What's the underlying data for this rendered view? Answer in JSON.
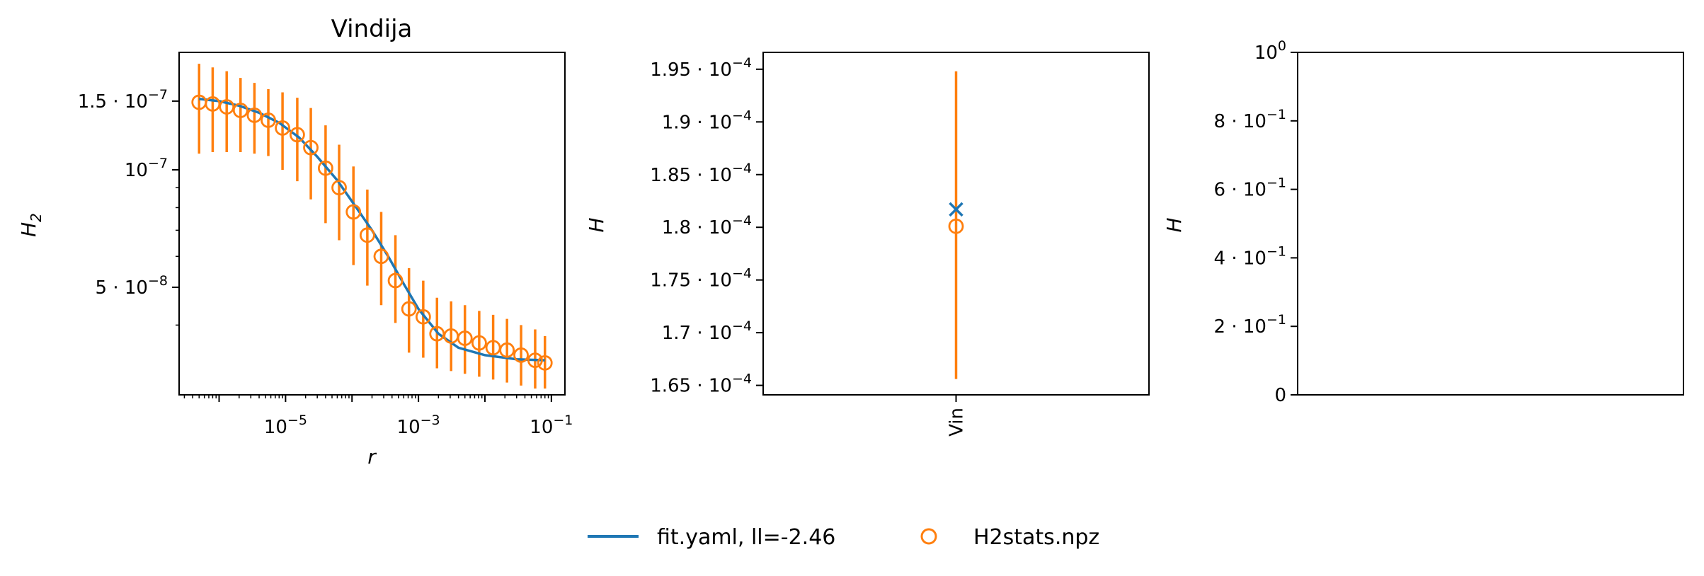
{
  "colors": {
    "fit": "#1f77b4",
    "data": "#ff7f0e"
  },
  "legend": {
    "fit_label": "fit.yaml, ll=-2.46",
    "data_label": "H2stats.npz"
  },
  "chart_data": [
    {
      "type": "line",
      "title": "Vindija",
      "xlabel": "r",
      "ylabel": "H_2",
      "xscale": "log",
      "yscale": "log",
      "xlim": [
        2.5e-07,
        0.16
      ],
      "ylim": [
        2.65e-08,
        2e-07
      ],
      "xticks": [
        1e-05,
        0.001,
        0.1
      ],
      "xticklabels": [
        {
          "b": "10",
          "e": "−5"
        },
        {
          "b": "10",
          "e": "−3"
        },
        {
          "b": "10",
          "e": "−1"
        }
      ],
      "yticks": [
        1.5e-07,
        1e-07,
        5e-08
      ],
      "yticklabels": [
        {
          "m": "1.5 · ",
          "b": "10",
          "e": "−7"
        },
        {
          "m": "",
          "b": "10",
          "e": "−7"
        },
        {
          "m": "5 · ",
          "b": "10",
          "e": "−8"
        }
      ],
      "fit_line": {
        "name": "fit.yaml, ll=-2.46",
        "x": [
          5e-07,
          1e-06,
          2e-06,
          4e-06,
          8e-06,
          1.6e-05,
          3e-05,
          6e-05,
          0.0001,
          0.0002,
          0.00035,
          0.0006,
          0.001,
          0.002,
          0.004,
          0.01,
          0.03,
          0.08
        ],
        "y": [
          1.52e-07,
          1.5e-07,
          1.46e-07,
          1.4e-07,
          1.32e-07,
          1.21e-07,
          1.08e-07,
          9.4e-08,
          8.3e-08,
          7e-08,
          6e-08,
          5.1e-08,
          4.4e-08,
          3.8e-08,
          3.5e-08,
          3.35e-08,
          3.27e-08,
          3.25e-08
        ]
      },
      "points": {
        "name": "H2stats.npz",
        "x": [
          5e-07,
          8e-07,
          1.3e-06,
          2.1e-06,
          3.4e-06,
          5.5e-06,
          9e-06,
          1.5e-05,
          2.4e-05,
          4e-05,
          6.4e-05,
          0.000105,
          0.00017,
          0.000275,
          0.00045,
          0.00072,
          0.00118,
          0.0019,
          0.0031,
          0.005,
          0.0082,
          0.0133,
          0.0215,
          0.035,
          0.057,
          0.08
        ],
        "y": [
          1.49e-07,
          1.475e-07,
          1.45e-07,
          1.42e-07,
          1.38e-07,
          1.34e-07,
          1.28e-07,
          1.23e-07,
          1.14e-07,
          1.01e-07,
          9e-08,
          7.8e-08,
          6.8e-08,
          6e-08,
          5.2e-08,
          4.4e-08,
          4.2e-08,
          3.8e-08,
          3.75e-08,
          3.7e-08,
          3.6e-08,
          3.5e-08,
          3.45e-08,
          3.35e-08,
          3.25e-08,
          3.2e-08
        ],
        "ylow": [
          1.1e-07,
          1.11e-07,
          1.11e-07,
          1.11e-07,
          1.1e-07,
          1.085e-07,
          1e-07,
          9.35e-08,
          8.4e-08,
          7.3e-08,
          6.6e-08,
          5.7e-08,
          5.05e-08,
          4.5e-08,
          4.05e-08,
          3.4e-08,
          3.3e-08,
          3.1e-08,
          3.05e-08,
          3e-08,
          2.95e-08,
          2.9e-08,
          2.85e-08,
          2.8e-08,
          2.75e-08,
          2.75e-08
        ],
        "yhigh": [
          1.87e-07,
          1.83e-07,
          1.79e-07,
          1.72e-07,
          1.67e-07,
          1.61e-07,
          1.58e-07,
          1.53e-07,
          1.44e-07,
          1.3e-07,
          1.16e-07,
          1.02e-07,
          8.9e-08,
          7.8e-08,
          6.8e-08,
          5.6e-08,
          5.2e-08,
          4.7e-08,
          4.6e-08,
          4.5e-08,
          4.35e-08,
          4.25e-08,
          4.15e-08,
          4e-08,
          3.9e-08,
          3.75e-08
        ]
      }
    },
    {
      "type": "scatter",
      "title": "",
      "xlabel": "",
      "ylabel": "H",
      "categories": [
        "Vin"
      ],
      "ylim": [
        0.0001641,
        0.0001966
      ],
      "yticks": [
        0.000165,
        0.00017,
        0.000175,
        0.00018,
        0.000185,
        0.00019,
        0.000195
      ],
      "yticklabels": [
        {
          "m": "1.65 · ",
          "b": "10",
          "e": "−4"
        },
        {
          "m": "1.7 · ",
          "b": "10",
          "e": "−4"
        },
        {
          "m": "1.75 · ",
          "b": "10",
          "e": "−4"
        },
        {
          "m": "1.8 · ",
          "b": "10",
          "e": "−4"
        },
        {
          "m": "1.85 · ",
          "b": "10",
          "e": "−4"
        },
        {
          "m": "1.9 · ",
          "b": "10",
          "e": "−4"
        },
        {
          "m": "1.95 · ",
          "b": "10",
          "e": "−4"
        }
      ],
      "fit_value": 0.0001817,
      "data_value": 0.0001801,
      "data_err": [
        0.0001656,
        0.0001948
      ]
    },
    {
      "type": "scatter",
      "title": "",
      "xlabel": "",
      "ylabel": "H",
      "ylim": [
        0,
        1
      ],
      "yticks": [
        0,
        0.2,
        0.4,
        0.6,
        0.8,
        1.0
      ],
      "yticklabels": [
        {
          "m": "0",
          "b": "",
          "e": ""
        },
        {
          "m": "2 · ",
          "b": "10",
          "e": "−1"
        },
        {
          "m": "4 · ",
          "b": "10",
          "e": "−1"
        },
        {
          "m": "6 · ",
          "b": "10",
          "e": "−1"
        },
        {
          "m": "8 · ",
          "b": "10",
          "e": "−1"
        },
        {
          "m": "",
          "b": "10",
          "e": "0"
        }
      ],
      "points": []
    }
  ]
}
